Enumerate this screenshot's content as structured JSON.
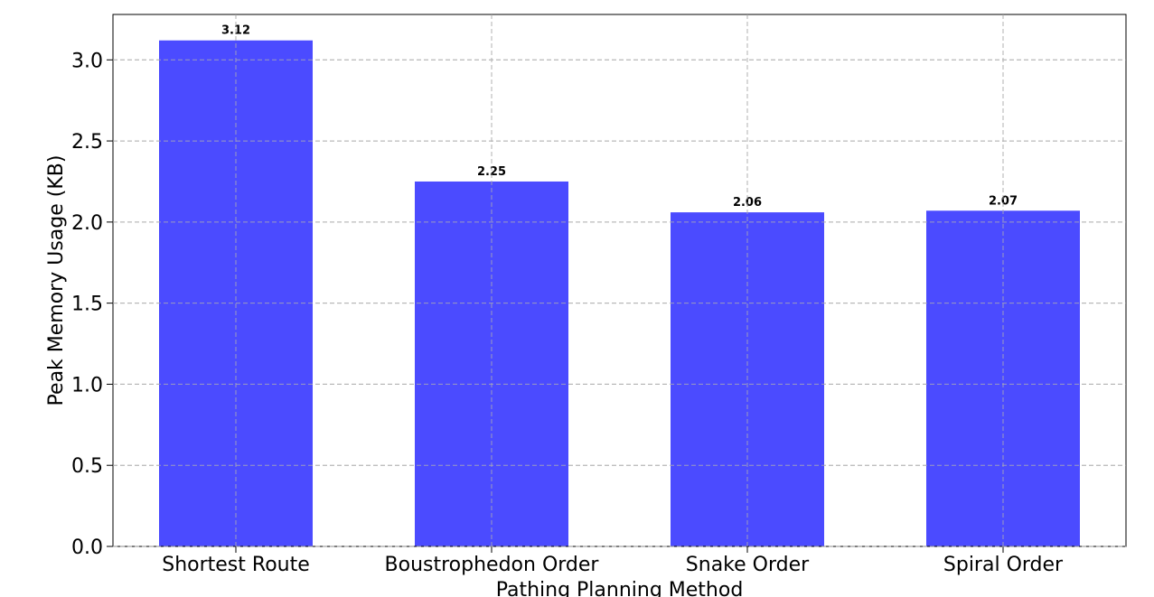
{
  "chart_data": {
    "type": "bar",
    "categories": [
      "Shortest Route",
      "Boustrophedon Order",
      "Snake Order",
      "Spiral Order"
    ],
    "values": [
      3.12,
      2.25,
      2.06,
      2.07
    ],
    "data_labels": [
      "3.12",
      "2.25",
      "2.06",
      "2.07"
    ],
    "title": "",
    "xlabel": "Pathing Planning Method",
    "ylabel": "Peak Memory Usage (KB)",
    "ylim": [
      0,
      3.28
    ],
    "yticks": [
      0.0,
      0.5,
      1.0,
      1.5,
      2.0,
      2.5,
      3.0
    ],
    "ytick_labels": [
      "0.0",
      "0.5",
      "1.0",
      "1.5",
      "2.0",
      "2.5",
      "3.0"
    ],
    "grid": true,
    "bar_color": "#4b4bff"
  }
}
